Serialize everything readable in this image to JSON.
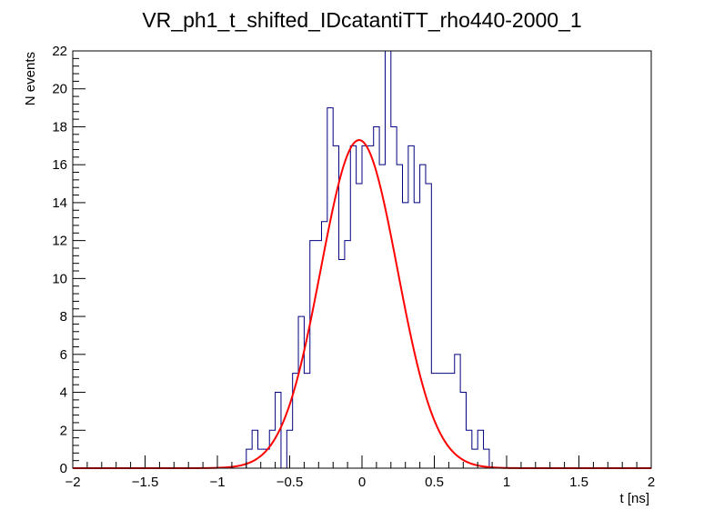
{
  "chart_data": {
    "type": "histogram",
    "title": "VR_ph1_t_shifted_IDcatantiTT_rho440-2000_1",
    "xlabel": "t [ns]",
    "ylabel": "N events",
    "xlim": [
      -2,
      2
    ],
    "ylim": [
      0,
      22
    ],
    "x_ticks": [
      -2,
      -1.5,
      -1,
      -0.5,
      0,
      0.5,
      1,
      1.5,
      2
    ],
    "x_tick_labels": [
      "−2",
      "−1.5",
      "−1",
      "−0.5",
      "0",
      "0.5",
      "1",
      "1.5",
      "2"
    ],
    "y_ticks": [
      0,
      2,
      4,
      6,
      8,
      10,
      12,
      14,
      16,
      18,
      20,
      22
    ],
    "y_tick_labels": [
      "0",
      "2",
      "4",
      "6",
      "8",
      "10",
      "12",
      "14",
      "16",
      "18",
      "20",
      "22"
    ],
    "histogram": {
      "name": "data",
      "color": "#000080",
      "bin_low": -2,
      "bin_width": 0.04,
      "counts": [
        0,
        0,
        0,
        0,
        0,
        0,
        0,
        0,
        0,
        0,
        0,
        0,
        0,
        0,
        0,
        0,
        0,
        0,
        0,
        0,
        0,
        0,
        0,
        0,
        0,
        0,
        0,
        0,
        0,
        0,
        1,
        2,
        1,
        1,
        2,
        4,
        0,
        2,
        5,
        8,
        5,
        12,
        12,
        13,
        19,
        17,
        11,
        12,
        17,
        15,
        17,
        17,
        18,
        16,
        22,
        18,
        16,
        14,
        17,
        14,
        16,
        15,
        5,
        5,
        5,
        5,
        6,
        4,
        2,
        1,
        2,
        1,
        0,
        0,
        0,
        0,
        0,
        0,
        0,
        0,
        0,
        0,
        0,
        0,
        0,
        0,
        0,
        0,
        0,
        0,
        0,
        0,
        0,
        0,
        0,
        0,
        0,
        0,
        0,
        0
      ]
    },
    "fit": {
      "name": "gaussian fit",
      "type": "gaussian",
      "color": "#ff0000",
      "amplitude": 17.3,
      "mean": -0.02,
      "sigma": 0.265
    }
  }
}
